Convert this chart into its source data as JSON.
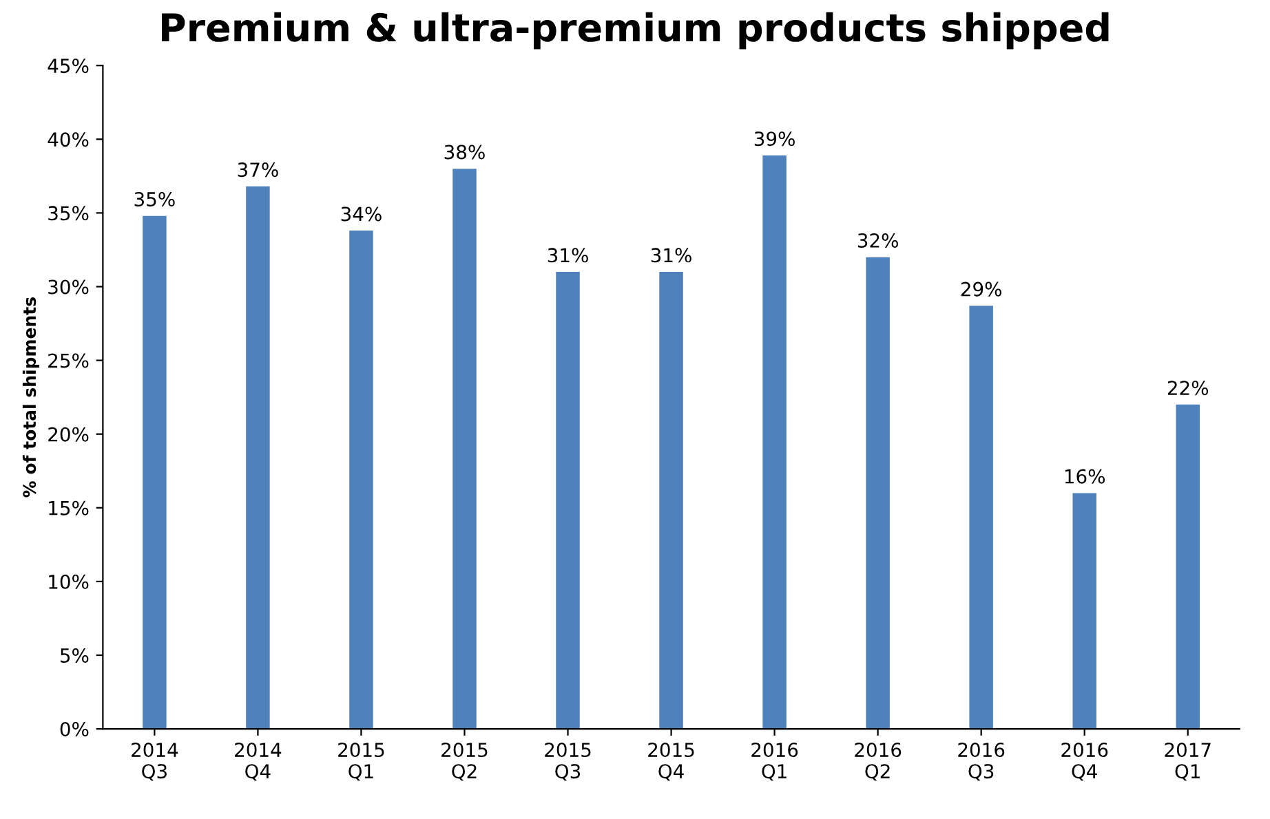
{
  "chart_data": {
    "type": "bar",
    "title": "Premium & ultra-premium products shipped",
    "ylabel": "% of total shipments",
    "categories": [
      "2014\nQ3",
      "2014\nQ4",
      "2015\nQ1",
      "2015\nQ2",
      "2015\nQ3",
      "2015\nQ4",
      "2016\nQ1",
      "2016\nQ2",
      "2016\nQ3",
      "2016\nQ4",
      "2017\nQ1"
    ],
    "values": [
      34.8,
      36.8,
      33.8,
      38,
      31,
      31,
      38.9,
      32,
      28.7,
      16,
      22
    ],
    "value_labels": [
      "35%",
      "37%",
      "34%",
      "38%",
      "31%",
      "31%",
      "39%",
      "32%",
      "29%",
      "16%",
      "22%"
    ],
    "color": "#4f81bd",
    "ylim": [
      0,
      45
    ],
    "yticks": [
      {
        "value": 0,
        "label": "0%"
      },
      {
        "value": 5,
        "label": "5%"
      },
      {
        "value": 10,
        "label": "10%"
      },
      {
        "value": 15,
        "label": "15%"
      },
      {
        "value": 20,
        "label": "20%"
      },
      {
        "value": 25,
        "label": "25%"
      },
      {
        "value": 30,
        "label": "30%"
      },
      {
        "value": 35,
        "label": "35%"
      },
      {
        "value": 40,
        "label": "40%"
      },
      {
        "value": 45,
        "label": "45%"
      }
    ],
    "grid": false,
    "legend": false
  }
}
